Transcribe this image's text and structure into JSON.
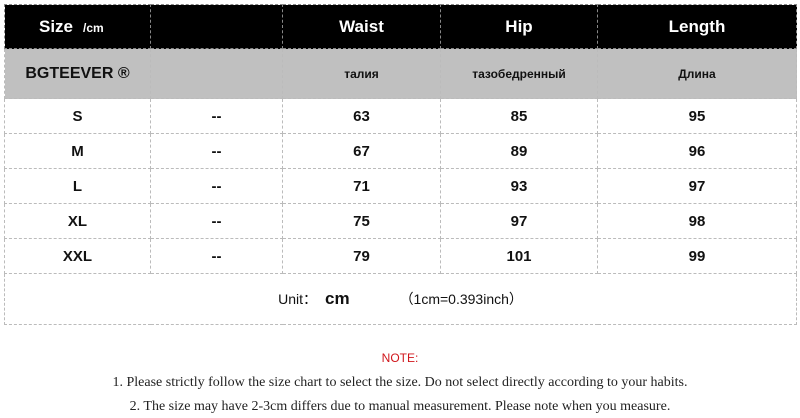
{
  "header": {
    "size": "Size",
    "unit": "/cm",
    "blank": "",
    "waist": "Waist",
    "hip": "Hip",
    "length": "Length"
  },
  "brand_row": {
    "brand": "BGTEEVER ®",
    "waist": "талия",
    "hip": "тазобедренный",
    "length": "Длина"
  },
  "rows": [
    {
      "size": "S",
      "col2": "--",
      "waist": "63",
      "hip": "85",
      "length": "95"
    },
    {
      "size": "M",
      "col2": "--",
      "waist": "67",
      "hip": "89",
      "length": "96"
    },
    {
      "size": "L",
      "col2": "--",
      "waist": "71",
      "hip": "93",
      "length": "97"
    },
    {
      "size": "XL",
      "col2": "--",
      "waist": "75",
      "hip": "97",
      "length": "98"
    },
    {
      "size": "XXL",
      "col2": "--",
      "waist": "79",
      "hip": "101",
      "length": "99"
    }
  ],
  "unit_row": {
    "label": "Unit：",
    "unit": "cm",
    "conversion": "（1cm=0.393inch）"
  },
  "notes": {
    "title": "NOTE:",
    "line1": "1. Please strictly follow the size chart to select the size. Do not select directly according to your habits.",
    "line2": "2. The size may have 2-3cm differs due to manual measurement. Please note when you measure."
  },
  "colors": {
    "header_bg": "#000000",
    "brand_bg": "#c0c0c0",
    "note_title": "#d0161b"
  }
}
